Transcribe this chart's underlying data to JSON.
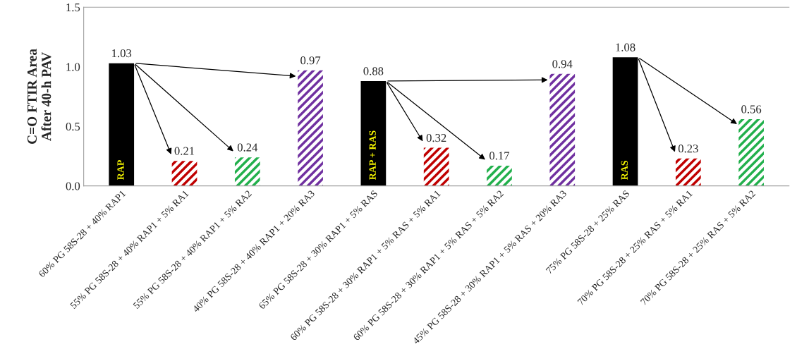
{
  "chart_data": {
    "type": "bar",
    "ylabel": "C=O FTIR Area\nAfter 40-h PAV",
    "categories": [
      "60% PG 58S-28 + 40% RAP1",
      "55% PG 58S-28 + 40% RAP1 + 5% RA1",
      "55% PG 58S-28 + 40% RAP1 + 5% RA2",
      "40% PG 58S-28 + 40% RAP1 + 20% RA3",
      "65% PG 58S-28 + 30% RAP1 + 5% RAS",
      "60% PG 58S-28 + 30% RAP1 + 5% RAS + 5% RA1",
      "60% PG 58S-28 + 30% RAP1 + 5% RAS + 5% RA2",
      "45% PG 58S-28 + 30% RAP1 + 5% RAS + 20% RA3",
      "75% PG 58S-28 + 25% RAS",
      "70% PG 58S-28 + 25% RAS + 5% RA1",
      "70% PG 58S-28 + 25% RAS + 5% RA2"
    ],
    "series": [
      {
        "color": "#000000",
        "values": [
          1.03,
          null,
          null,
          null,
          0.88,
          null,
          null,
          null,
          1.08,
          null,
          null
        ]
      },
      {
        "colors": [
          null,
          "#c00000",
          "#22b04c",
          "#7030a0",
          null,
          "#c00000",
          "#22b04c",
          "#7030a0",
          null,
          "#c00000",
          "#22b04c"
        ],
        "values": [
          null,
          0.21,
          0.24,
          0.97,
          null,
          0.32,
          0.17,
          0.94,
          null,
          0.23,
          0.56
        ]
      }
    ],
    "data_labels": true,
    "ylim": [
      0,
      1.5
    ],
    "yticks": [
      {
        "value": 0,
        "label": "0.0"
      },
      {
        "value": 0.5,
        "label": "0.5"
      },
      {
        "value": 1,
        "label": "1.0"
      },
      {
        "value": 1.5,
        "label": "1.5"
      }
    ],
    "annotations": [
      "RAP",
      "RAP + RAS",
      "RAS"
    ],
    "grid": false,
    "legend": false
  }
}
